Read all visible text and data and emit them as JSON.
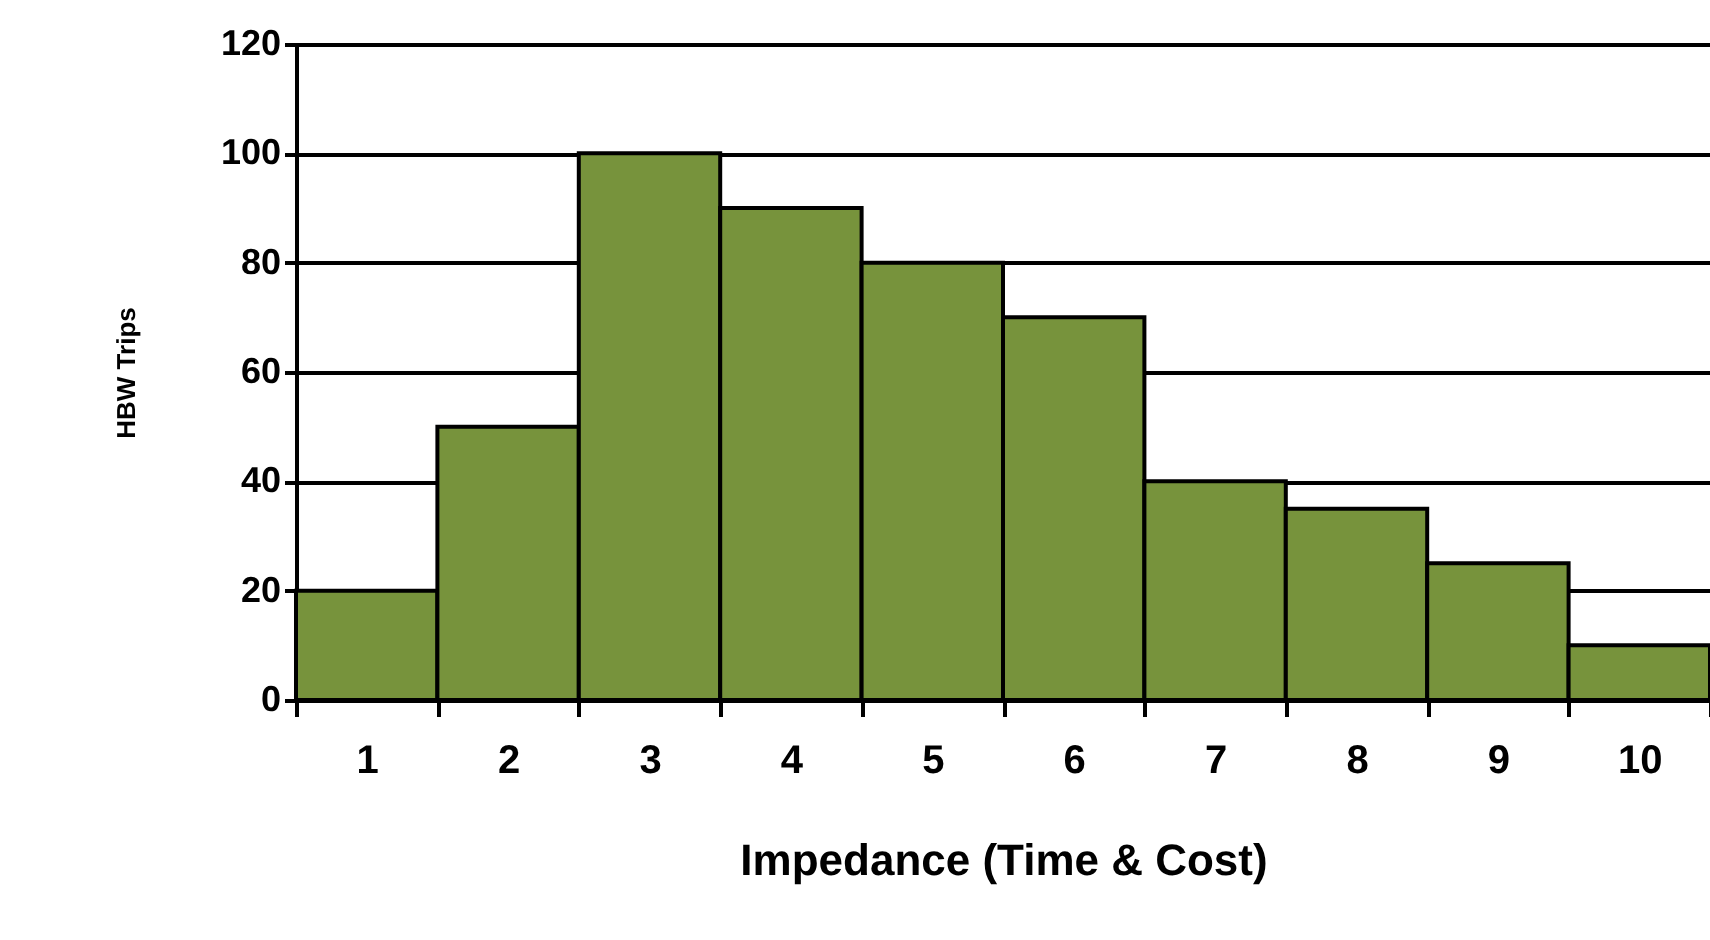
{
  "chart_data": {
    "type": "bar",
    "xlabel": "Impedance (Time & Cost)",
    "ylabel": "HBW Trips",
    "categories": [
      "1",
      "2",
      "3",
      "4",
      "5",
      "6",
      "7",
      "8",
      "9",
      "10"
    ],
    "values": [
      20,
      50,
      100,
      90,
      80,
      70,
      40,
      35,
      25,
      10
    ],
    "color": "#77933c",
    "ylim": [
      0,
      120
    ],
    "yticks": [
      0,
      20,
      40,
      60,
      80,
      100,
      120
    ],
    "grid": "y"
  }
}
